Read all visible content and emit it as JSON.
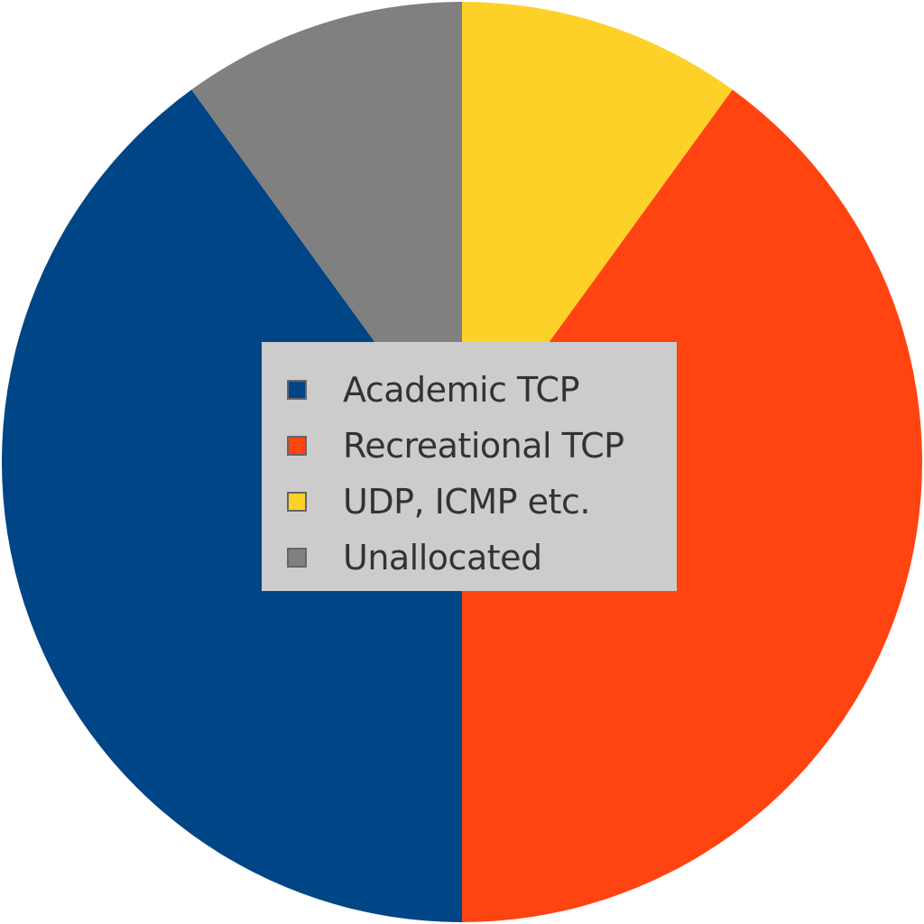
{
  "chart_data": {
    "type": "pie",
    "title": "",
    "legend_placement": "center",
    "start_angle_deg": 0,
    "direction": "clockwise",
    "slices": [
      {
        "name": "UDP, ICMP etc.",
        "value": 10,
        "color": "#fdd128"
      },
      {
        "name": "Recreational TCP",
        "value": 40,
        "color": "#ff4411"
      },
      {
        "name": "Academic TCP",
        "value": 40,
        "color": "#004586"
      },
      {
        "name": "Unallocated",
        "value": 10,
        "color": "#808080"
      }
    ],
    "legend": [
      {
        "name": "Academic TCP",
        "color": "#004586"
      },
      {
        "name": "Recreational TCP",
        "color": "#ff4411"
      },
      {
        "name": "UDP, ICMP etc.",
        "color": "#fdd128"
      },
      {
        "name": "Unallocated",
        "color": "#808080"
      }
    ]
  }
}
